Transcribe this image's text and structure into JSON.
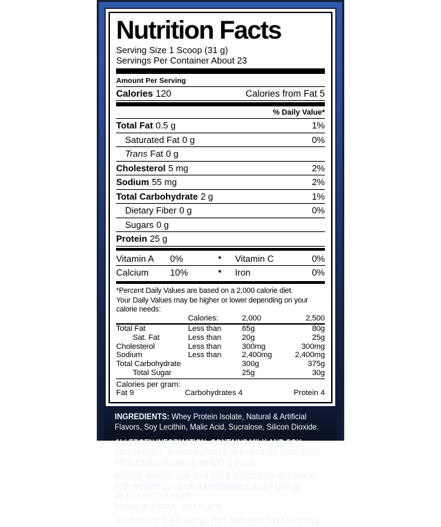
{
  "facts": {
    "title": "Nutrition Facts",
    "serving_size": "Serving Size 1 Scoop (31 g)",
    "servings_per_container": "Servings Per Container About 23",
    "amount_per_serving": "Amount Per Serving",
    "calories_label": "Calories",
    "calories_value": "120",
    "calories_from_fat": "Calories from Fat 5",
    "daily_value_header": "% Daily Value*",
    "rows": [
      {
        "label": "Total Fat",
        "amount": "0.5 g",
        "dv": "1%"
      },
      {
        "label": "Saturated Fat",
        "amount": "0 g",
        "dv": "0%"
      },
      {
        "label_italic": "Trans",
        "label": "Fat",
        "amount": "0 g",
        "dv": ""
      },
      {
        "label": "Cholesterol",
        "amount": "5 mg",
        "dv": "2%"
      },
      {
        "label": "Sodium",
        "amount": "55 mg",
        "dv": "2%"
      },
      {
        "label": "Total Carbohydrate",
        "amount": "2 g",
        "dv": "1%"
      },
      {
        "label": "Dietary Fiber",
        "amount": "0 g",
        "dv": "0%"
      },
      {
        "label": "Sugars",
        "amount": "0 g",
        "dv": ""
      },
      {
        "label": "Protein",
        "amount": "25 g",
        "dv": ""
      }
    ],
    "micronutrients": [
      {
        "left_label": "Vitamin A",
        "left_value": "0%",
        "separator": "*",
        "right_label": "Vitamin C",
        "right_value": "0%"
      },
      {
        "left_label": "Calcium",
        "left_value": "10%",
        "separator": "*",
        "right_label": "Iron",
        "right_value": "0%"
      }
    ],
    "footnote_line1": "*Percent Daily Values are based on a 2,000 calorie diet.",
    "footnote_line2": "Your Daily Values may be higher or lower depending on your calorie needs:",
    "dv_table": {
      "header": {
        "col2": "Calories:",
        "col3": "2,000",
        "col4": "2,500"
      },
      "rows": [
        {
          "label": "Total Fat",
          "qualifier": "Less than",
          "v2000": "65g",
          "v2500": "80g"
        },
        {
          "label": "Sat. Fat",
          "qualifier": "Less than",
          "v2000": "20g",
          "v2500": "25g"
        },
        {
          "label": "Cholesterol",
          "qualifier": "Less than",
          "v2000": "300mg",
          "v2500": "300mg"
        },
        {
          "label": "Sodium",
          "qualifier": "Less than",
          "v2000": "2,400mg",
          "v2500": "2,400mg"
        },
        {
          "label": "Total Carbohydrate",
          "qualifier": "",
          "v2000": "300g",
          "v2500": "375g"
        },
        {
          "label": "Total Sugar",
          "qualifier": "",
          "v2000": "25g",
          "v2500": "30g"
        }
      ]
    },
    "calories_per_gram": {
      "label": "Calories per gram:",
      "fat": "Fat 9",
      "carbohydrates": "Carbohydrates 4",
      "protein": "Protein 4"
    }
  },
  "info": {
    "ingredients_label": "INGREDIENTS:",
    "ingredients_text": " Whey Protein Isolate, Natural & Artificial Flavors, Soy Lecithin, Malic Acid, Sucralose, Silicon Dioxide.",
    "allergen_text": "ALLERGEN INFORMATION: CONTAINS MILK AND SOY INGREDIENTS. MANUFACTURED IN A FACILITY THAT ALSO PROCESSES PEANUTS, WHEAT & EGGS.",
    "notice_text": "NOTICE: DO NOT USE AS A SOLE SOURCE OF NUTRITION FOR WEIGHT LOSS OR MAINTENANCE. KEEP OUT OF REACH OF CHILDREN.",
    "storage_text": "STORE IN A COOL, DRY PLACE.",
    "disclaimer_text": "*AS PART OF A BALANCED DIET AND HEALTHY LIFESTYLE"
  },
  "colors": {
    "frame_blue": "#2f59ac",
    "background_navy": "#15213f",
    "panel_white": "#ffffff",
    "text_black": "#000000",
    "info_text_white": "#f2f5fa"
  }
}
